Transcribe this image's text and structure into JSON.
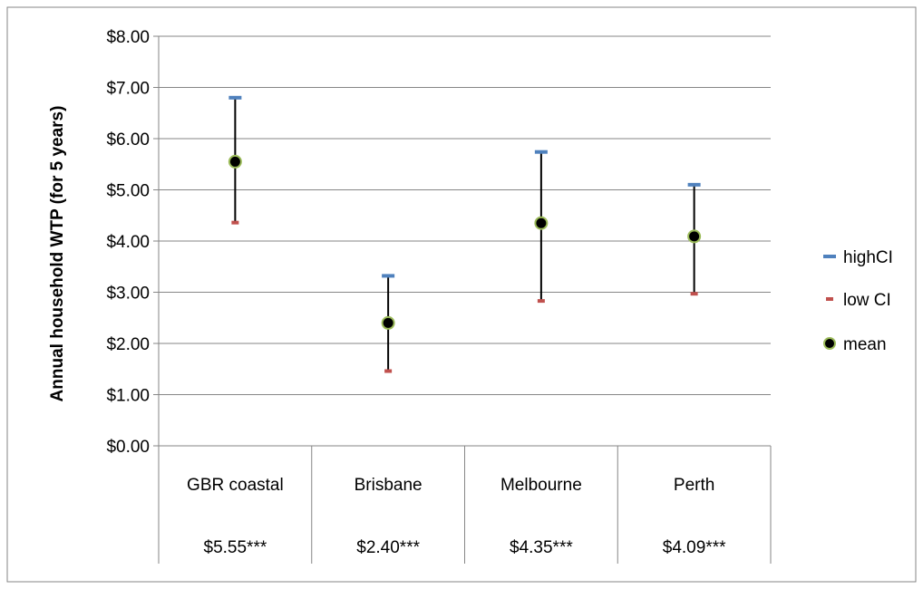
{
  "chart_data": {
    "type": "error-bar",
    "title": "",
    "ylabel": "Annual household  WTP (for 5 years)",
    "xlabel": "",
    "ylim": [
      0,
      8
    ],
    "y_ticks": [
      0,
      1,
      2,
      3,
      4,
      5,
      6,
      7,
      8
    ],
    "y_tick_labels": [
      "$0.00",
      "$1.00",
      "$2.00",
      "$3.00",
      "$4.00",
      "$5.00",
      "$6.00",
      "$7.00",
      "$8.00"
    ],
    "categories": [
      "GBR coastal",
      "Brisbane",
      "Melbourne",
      "Perth"
    ],
    "value_labels": [
      "$5.55***",
      "$2.40***",
      "$4.35***",
      "$4.09***"
    ],
    "series": [
      {
        "name": "highCI",
        "color": "#4F81BD",
        "marker": "dash",
        "values": [
          6.8,
          3.32,
          5.74,
          5.1
        ]
      },
      {
        "name": "low CI",
        "color": "#C0504D",
        "marker": "dash",
        "values": [
          4.36,
          1.46,
          2.83,
          2.97
        ]
      },
      {
        "name": "mean",
        "color": "#000000",
        "marker": "circle",
        "marker_outline": "#9BBB59",
        "values": [
          5.55,
          2.4,
          4.35,
          4.09
        ]
      }
    ],
    "grid": true,
    "legend_position": "right"
  }
}
